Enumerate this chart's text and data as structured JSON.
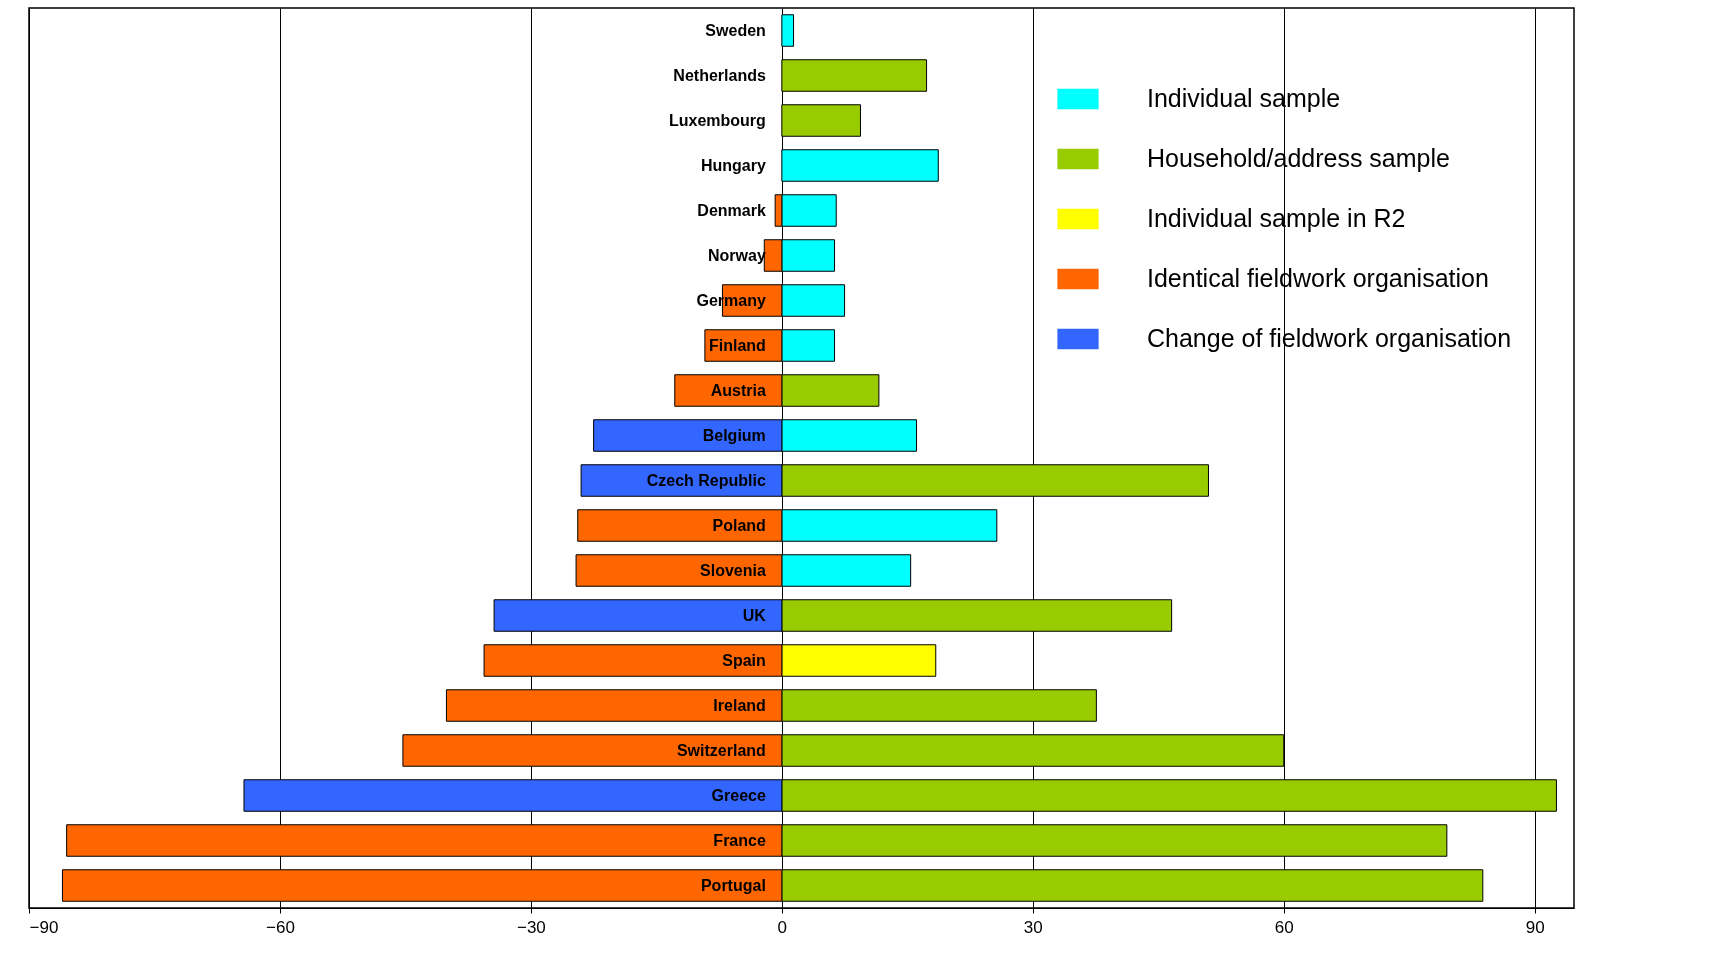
{
  "chart_data": {
    "type": "bar",
    "orientation": "horizontal",
    "stacked": true,
    "categories": [
      "Sweden",
      "Netherlands",
      "Luxembourg",
      "Hungary",
      "Denmark",
      "Norway",
      "Germany",
      "Finland",
      "Austria",
      "Belgium",
      "Czech Republic",
      "Poland",
      "Slovenia",
      "UK",
      "Spain",
      "Ireland",
      "Switzerland",
      "Greece",
      "France",
      "Portugal"
    ],
    "series": [
      {
        "name": "Individual sample",
        "color": "#00ffff",
        "values": [
          1.4,
          null,
          null,
          18.7,
          6.5,
          6.3,
          7.5,
          6.3,
          null,
          16.1,
          null,
          25.7,
          15.4,
          null,
          null,
          null,
          null,
          null,
          null,
          null
        ]
      },
      {
        "name": "Household/address  sample",
        "color": "#99cc00",
        "values": [
          null,
          17.3,
          9.4,
          null,
          null,
          null,
          null,
          null,
          11.6,
          null,
          51.0,
          null,
          null,
          46.6,
          null,
          37.6,
          60,
          92.6,
          79.5,
          83.8
        ]
      },
      {
        "name": "Individual sample in R2",
        "color": "#ffff00",
        "values": [
          null,
          null,
          null,
          null,
          null,
          null,
          null,
          null,
          null,
          null,
          null,
          null,
          null,
          null,
          18.4,
          null,
          null,
          null,
          null,
          null
        ]
      },
      {
        "name": "Identical fieldwork organisation",
        "color": "#ff6600",
        "values": [
          null,
          null,
          null,
          null,
          -0.8,
          -2.1,
          -7.1,
          -9.2,
          -12.8,
          null,
          null,
          -24.4,
          -24.6,
          null,
          -35.6,
          -40.1,
          -45.3,
          null,
          -85.5,
          -86.0
        ]
      },
      {
        "name": "Change of fieldwork organisation",
        "color": "#3366ff",
        "values": [
          null,
          null,
          null,
          null,
          null,
          null,
          null,
          null,
          null,
          -22.5,
          -24.0,
          null,
          null,
          -34.4,
          null,
          null,
          null,
          -64.3,
          null,
          null
        ]
      }
    ],
    "xlim": [
      -90,
      94.7
    ],
    "xticks": [
      -90,
      -60,
      -30,
      0,
      30,
      60,
      90
    ],
    "grid": "x",
    "legend": "top right"
  }
}
